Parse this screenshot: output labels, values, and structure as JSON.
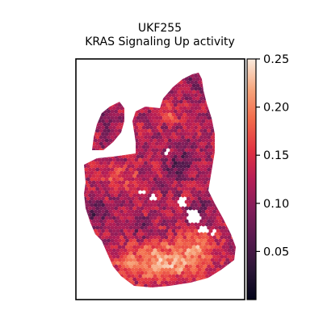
{
  "chart_data": {
    "type": "heatmap",
    "title": "UKF255",
    "subtitle": "KRAS Signaling Up activity",
    "colorbar": {
      "colormap": "rocket",
      "range": [
        0.0,
        0.25
      ],
      "ticks": [
        0.05,
        0.1,
        0.15,
        0.2,
        0.25
      ],
      "tick_labels": [
        "0.05",
        "0.10",
        "0.15",
        "0.20",
        "0.25"
      ]
    },
    "axes": {
      "frame": true,
      "xticks": false,
      "yticks": false,
      "grid": false
    }
  }
}
